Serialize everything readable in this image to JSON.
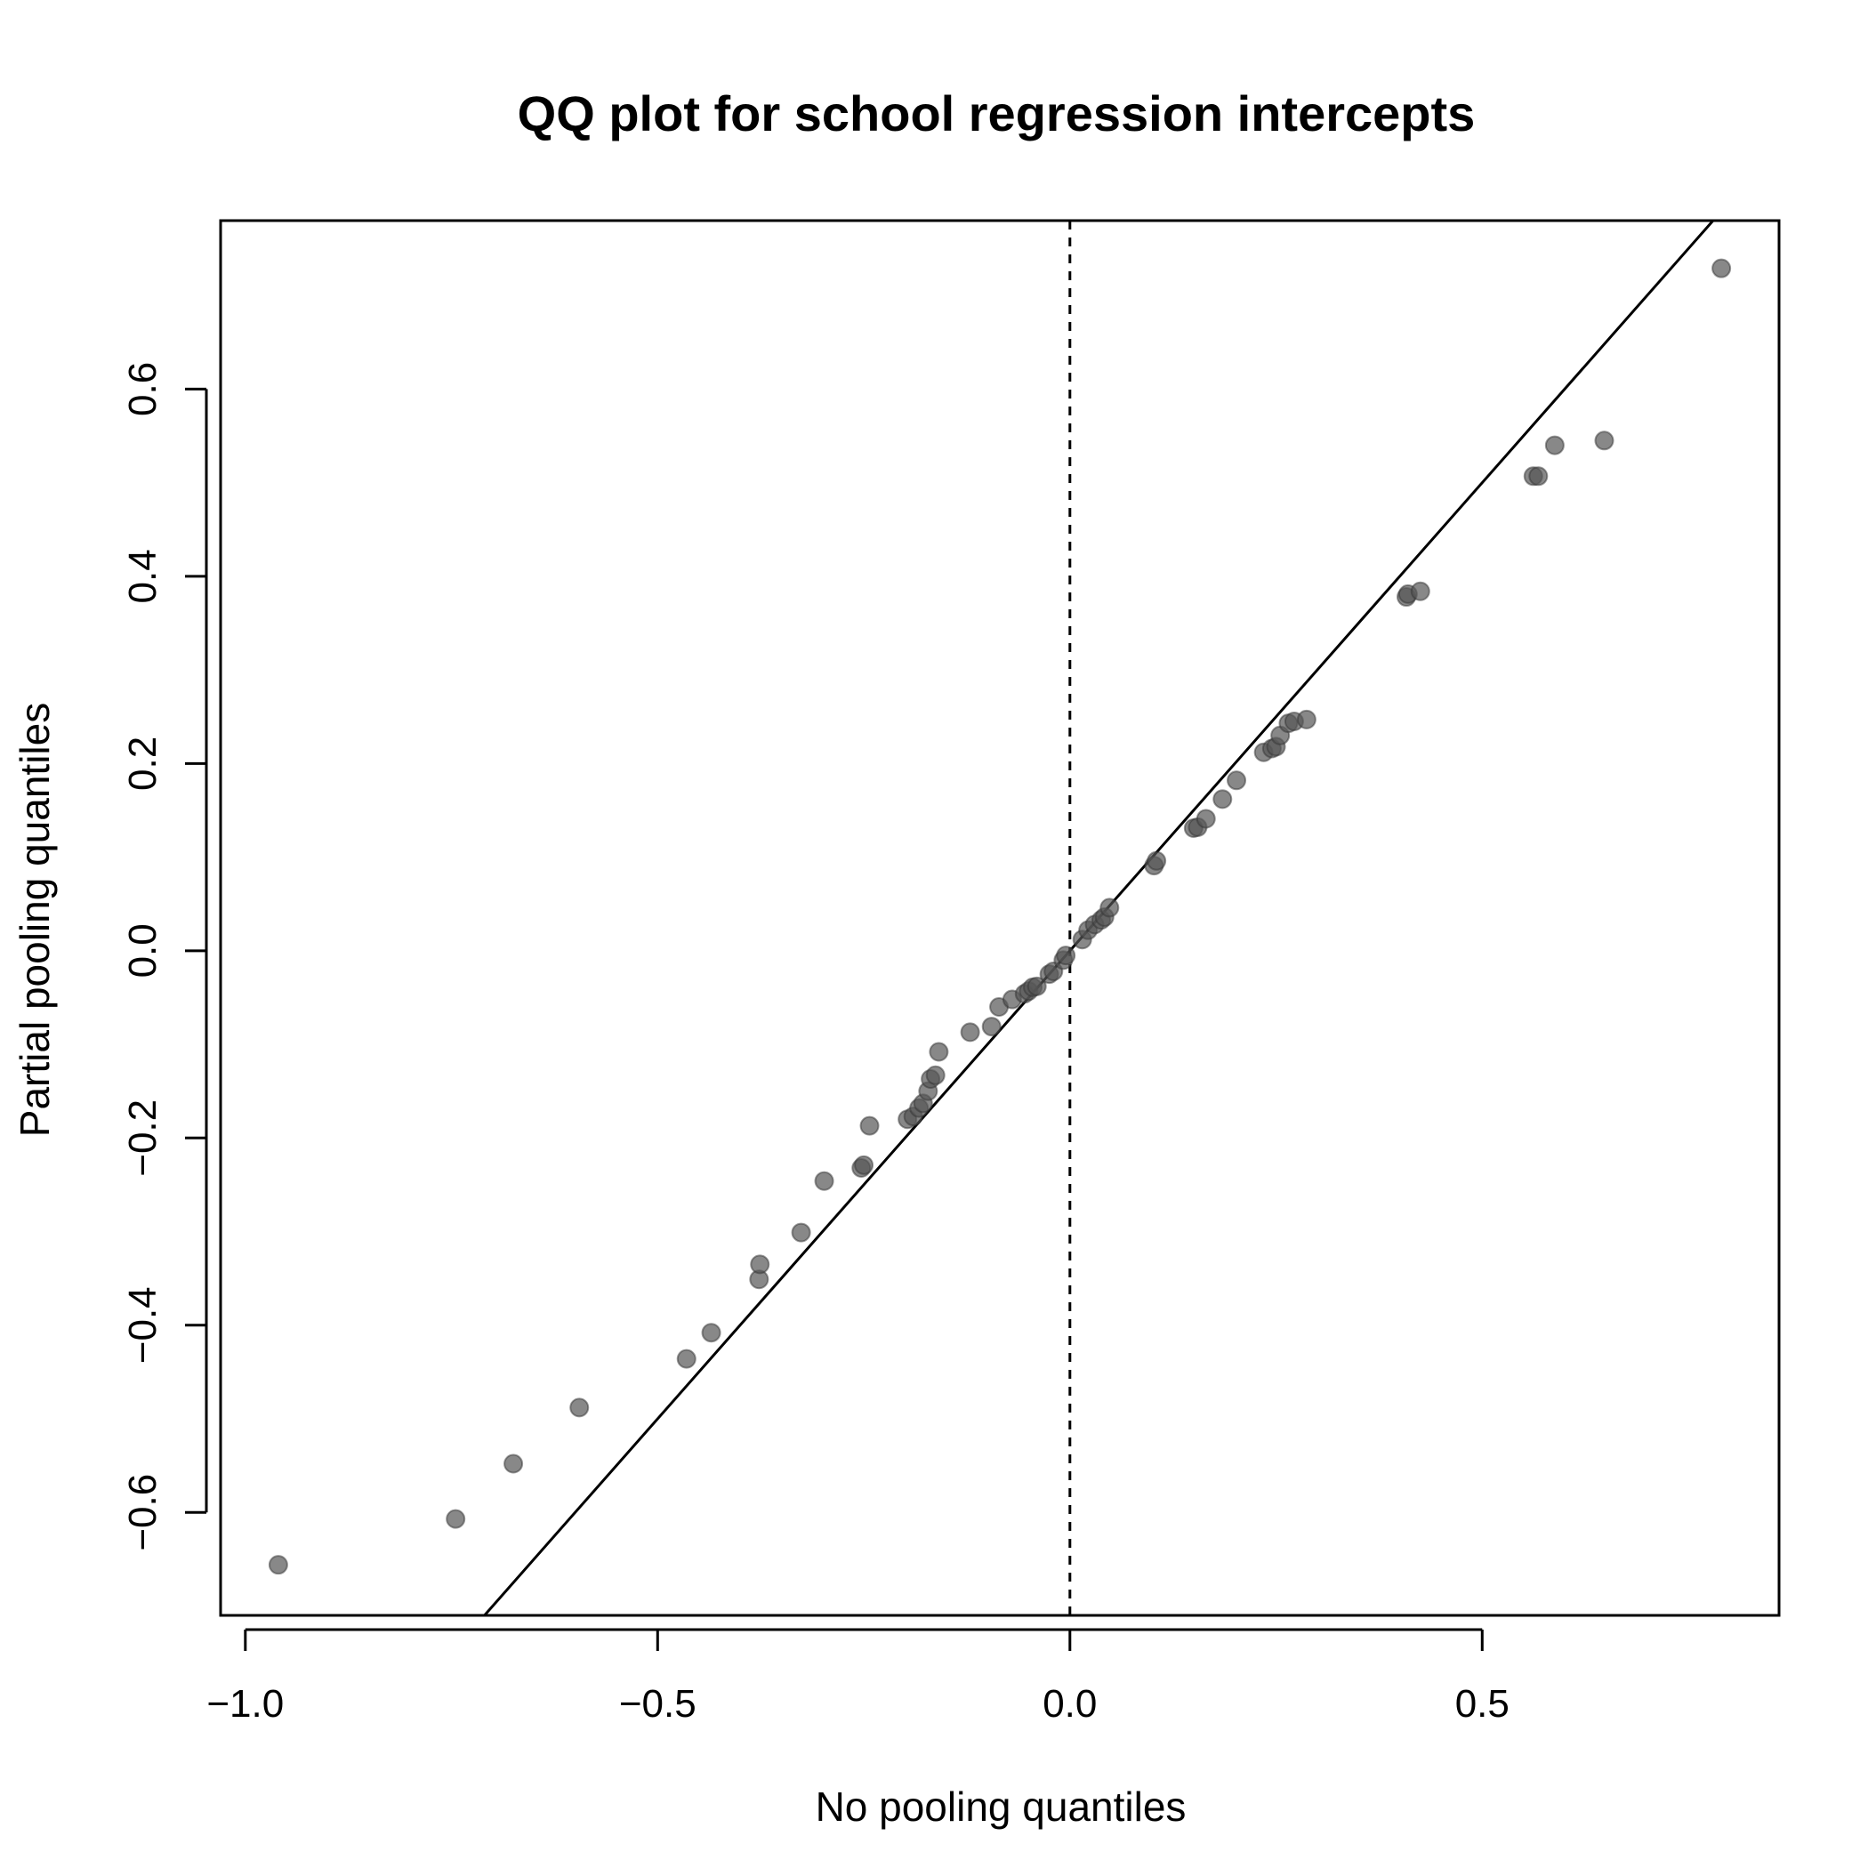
{
  "chart_data": {
    "type": "scatter",
    "title": "QQ plot for school regression intercepts",
    "xlabel": "No pooling quantiles",
    "ylabel": "Partial pooling quantiles",
    "xlim": [
      -1.03,
      0.86
    ],
    "ylim": [
      -0.71,
      0.78
    ],
    "xticks": [
      -1.0,
      -0.5,
      0.0,
      0.5
    ],
    "xtick_labels": [
      "−1.0",
      "−0.5",
      "0.0",
      "0.5"
    ],
    "yticks": [
      -0.6,
      -0.4,
      -0.2,
      0.0,
      0.2,
      0.4,
      0.6
    ],
    "ytick_labels": [
      "−0.6",
      "−0.4",
      "−0.2",
      "0.0",
      "0.2",
      "0.4",
      "0.6"
    ],
    "grid": false,
    "reference_line": {
      "slope": 1,
      "intercept": 0
    },
    "vertical_line": {
      "x": 0,
      "style": "dashed"
    },
    "point_color": "#555555",
    "points": [
      {
        "x": -0.96,
        "y": -0.656
      },
      {
        "x": -0.745,
        "y": -0.607
      },
      {
        "x": -0.675,
        "y": -0.548
      },
      {
        "x": -0.595,
        "y": -0.488
      },
      {
        "x": -0.465,
        "y": -0.436
      },
      {
        "x": -0.435,
        "y": -0.408
      },
      {
        "x": -0.377,
        "y": -0.351
      },
      {
        "x": -0.376,
        "y": -0.335
      },
      {
        "x": -0.326,
        "y": -0.301
      },
      {
        "x": -0.298,
        "y": -0.246
      },
      {
        "x": -0.253,
        "y": -0.232
      },
      {
        "x": -0.25,
        "y": -0.229
      },
      {
        "x": -0.243,
        "y": -0.187
      },
      {
        "x": -0.197,
        "y": -0.18
      },
      {
        "x": -0.19,
        "y": -0.177
      },
      {
        "x": -0.183,
        "y": -0.168
      },
      {
        "x": -0.178,
        "y": -0.163
      },
      {
        "x": -0.172,
        "y": -0.15
      },
      {
        "x": -0.169,
        "y": -0.137
      },
      {
        "x": -0.163,
        "y": -0.133
      },
      {
        "x": -0.159,
        "y": -0.108
      },
      {
        "x": -0.121,
        "y": -0.087
      },
      {
        "x": -0.095,
        "y": -0.081
      },
      {
        "x": -0.086,
        "y": -0.06
      },
      {
        "x": -0.07,
        "y": -0.052
      },
      {
        "x": -0.055,
        "y": -0.046
      },
      {
        "x": -0.05,
        "y": -0.043
      },
      {
        "x": -0.045,
        "y": -0.039
      },
      {
        "x": -0.04,
        "y": -0.038
      },
      {
        "x": -0.025,
        "y": -0.025
      },
      {
        "x": -0.02,
        "y": -0.022
      },
      {
        "x": -0.008,
        "y": -0.01
      },
      {
        "x": -0.005,
        "y": -0.005
      },
      {
        "x": 0.015,
        "y": 0.012
      },
      {
        "x": 0.022,
        "y": 0.022
      },
      {
        "x": 0.03,
        "y": 0.028
      },
      {
        "x": 0.038,
        "y": 0.033
      },
      {
        "x": 0.042,
        "y": 0.036
      },
      {
        "x": 0.048,
        "y": 0.046
      },
      {
        "x": 0.102,
        "y": 0.091
      },
      {
        "x": 0.105,
        "y": 0.096
      },
      {
        "x": 0.15,
        "y": 0.131
      },
      {
        "x": 0.155,
        "y": 0.132
      },
      {
        "x": 0.165,
        "y": 0.141
      },
      {
        "x": 0.185,
        "y": 0.162
      },
      {
        "x": 0.202,
        "y": 0.182
      },
      {
        "x": 0.235,
        "y": 0.212
      },
      {
        "x": 0.245,
        "y": 0.216
      },
      {
        "x": 0.25,
        "y": 0.218
      },
      {
        "x": 0.255,
        "y": 0.23
      },
      {
        "x": 0.265,
        "y": 0.243
      },
      {
        "x": 0.272,
        "y": 0.245
      },
      {
        "x": 0.287,
        "y": 0.247
      },
      {
        "x": 0.408,
        "y": 0.378
      },
      {
        "x": 0.41,
        "y": 0.381
      },
      {
        "x": 0.425,
        "y": 0.384
      },
      {
        "x": 0.562,
        "y": 0.507
      },
      {
        "x": 0.568,
        "y": 0.507
      },
      {
        "x": 0.588,
        "y": 0.54
      },
      {
        "x": 0.648,
        "y": 0.545
      },
      {
        "x": 0.79,
        "y": 0.729
      }
    ]
  }
}
